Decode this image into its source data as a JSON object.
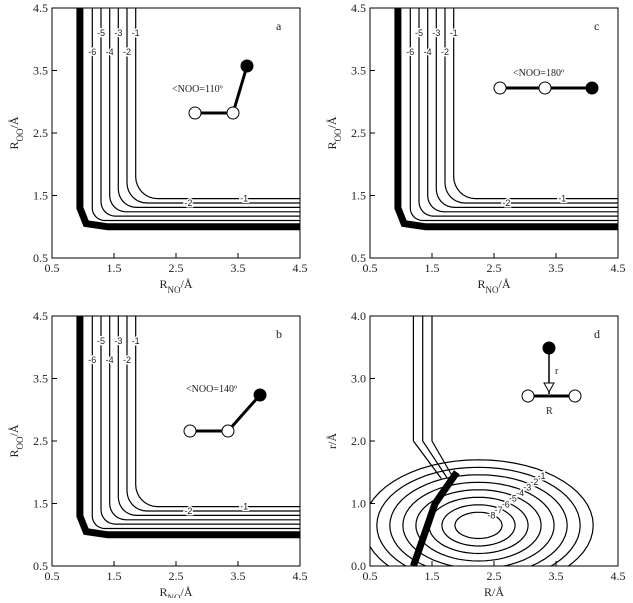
{
  "chart_data": [
    {
      "type": "contour",
      "panel_label": "a",
      "annotation": "<NOO=110º",
      "x_label": [
        {
          "text": "R"
        },
        {
          "text": "NO",
          "sub": true
        },
        {
          "text": "/Å"
        }
      ],
      "y_label": [
        {
          "text": "R"
        },
        {
          "text": "OO",
          "sub": true
        },
        {
          "text": "/Å"
        }
      ],
      "xlim": [
        0.5,
        4.5
      ],
      "ylim": [
        0.5,
        4.5
      ],
      "xticks": [
        0.5,
        1.5,
        2.5,
        3.5,
        4.5
      ],
      "yticks": [
        0.5,
        1.5,
        2.5,
        3.5,
        4.5
      ],
      "levels": [
        -1,
        -2,
        -3,
        -4,
        -5,
        -6
      ],
      "color": "#000000"
    },
    {
      "type": "contour",
      "panel_label": "b",
      "annotation": "<NOO=140º",
      "x_label": [
        {
          "text": "R"
        },
        {
          "text": "NO",
          "sub": true
        },
        {
          "text": "/Å"
        }
      ],
      "y_label": [
        {
          "text": "R"
        },
        {
          "text": "OO",
          "sub": true
        },
        {
          "text": "/Å"
        }
      ],
      "xlim": [
        0.5,
        4.5
      ],
      "ylim": [
        0.5,
        4.5
      ],
      "xticks": [
        0.5,
        1.5,
        2.5,
        3.5,
        4.5
      ],
      "yticks": [
        0.5,
        1.5,
        2.5,
        3.5,
        4.5
      ],
      "levels": [
        -1,
        -2,
        -3,
        -4,
        -5,
        -6
      ],
      "color": "#000000"
    },
    {
      "type": "contour",
      "panel_label": "c",
      "annotation": "<NOO=180º",
      "x_label": [
        {
          "text": "R"
        },
        {
          "text": "NO",
          "sub": true
        },
        {
          "text": "/Å"
        }
      ],
      "y_label": [
        {
          "text": "R"
        },
        {
          "text": "OO",
          "sub": true
        },
        {
          "text": "/Å"
        }
      ],
      "xlim": [
        0.5,
        4.5
      ],
      "ylim": [
        0.5,
        4.5
      ],
      "xticks": [
        0.5,
        1.5,
        2.5,
        3.5,
        4.5
      ],
      "yticks": [
        0.5,
        1.5,
        2.5,
        3.5,
        4.5
      ],
      "levels": [
        -1,
        -2,
        -3,
        -4,
        -5,
        -6
      ],
      "color": "#000000"
    },
    {
      "type": "well",
      "panel_label": "d",
      "annotation_r": "r",
      "annotation_R": "R",
      "x_label": [
        {
          "text": "R/Å"
        }
      ],
      "y_label": [
        {
          "text": "r/Å"
        }
      ],
      "xlim": [
        0.5,
        4.5
      ],
      "ylim": [
        0,
        4
      ],
      "xticks": [
        0.5,
        1.5,
        2.5,
        3.5,
        4.5
      ],
      "yticks": [
        {
          "value": 0,
          "label": "0.0"
        },
        {
          "value": 1,
          "label": "1.0"
        },
        {
          "value": 2,
          "label": "2.0"
        },
        {
          "value": 3,
          "label": "3.0"
        },
        {
          "value": 4,
          "label": "4.0"
        }
      ],
      "levels": [
        -1,
        -2,
        -3,
        -4,
        -5,
        -6,
        -7,
        -8
      ],
      "color": "#000000"
    }
  ]
}
